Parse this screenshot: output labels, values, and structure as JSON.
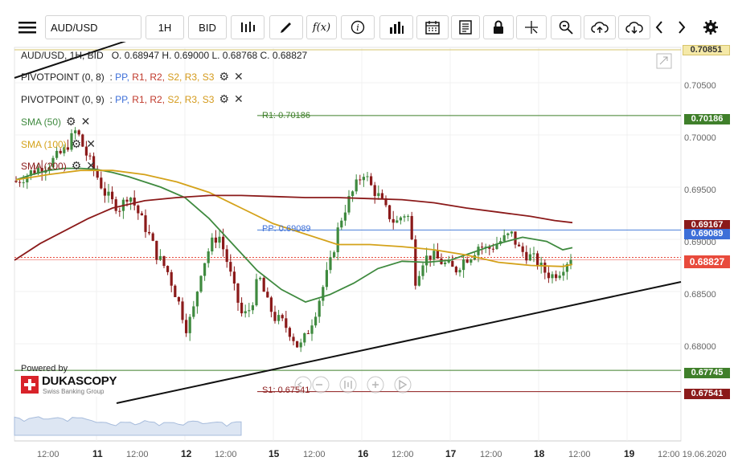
{
  "toolbar": {
    "symbol": "AUD/USD",
    "timeframe": "1H",
    "price_type": "BID",
    "fx_label": "f(x)"
  },
  "ohlc": {
    "prefix": "AUD/USD, 1H, BID",
    "text": "O. 0.68947 H. 0.69000 L. 0.68768 C. 0.68827"
  },
  "legend": [
    {
      "name": "PIVOTPOINT (0, 8)",
      "items": [
        "PP,",
        "R1,",
        "R2,",
        "S2,",
        "R3,",
        "S3"
      ]
    },
    {
      "name": "PIVOTPOINT (0, 9)",
      "items": [
        "PP,",
        "R1,",
        "R2,",
        "S2,",
        "R3,",
        "S3"
      ]
    },
    {
      "name": "SMA (50)",
      "color": "#3f8a3f"
    },
    {
      "name": "SMA (100)",
      "color": "#d4a21a"
    },
    {
      "name": "SMA (200)",
      "color": "#8b1a1a"
    }
  ],
  "levels": {
    "r1_label": "R1: 0.70186",
    "pp_label": "PP: 0.69089",
    "s1_label": "S1: 0.67541"
  },
  "price_tags": {
    "top": "0.70851",
    "r1": "0.70186",
    "sma200": "0.69167",
    "pp": "0.69089",
    "sma50": "0.69000",
    "current": "0.68827",
    "green_low": "0.67745",
    "s1": "0.67541"
  },
  "y_axis": [
    "0.70500",
    "0.70000",
    "0.69500",
    "0.69000",
    "0.68500",
    "0.68000"
  ],
  "x_axis": {
    "labels": [
      "12:00",
      "11",
      "12:00",
      "12",
      "12:00",
      "15",
      "12:00",
      "16",
      "12:00",
      "17",
      "12:00",
      "18",
      "12:00",
      "19",
      "12:00 19.06.2020"
    ]
  },
  "branding": {
    "powered": "Powered by",
    "name": "DUKASCOPY",
    "tagline": "Swiss Banking Group"
  },
  "colors": {
    "sma50": "#3f8a3f",
    "sma100": "#d4a21a",
    "sma200": "#8b1a1a",
    "pp_line": "#4a7fd8",
    "r1_line": "#3f7f2a",
    "s1_line": "#8b1a1a",
    "bull": "#3f8a3f",
    "bear": "#8b1a1a"
  }
}
